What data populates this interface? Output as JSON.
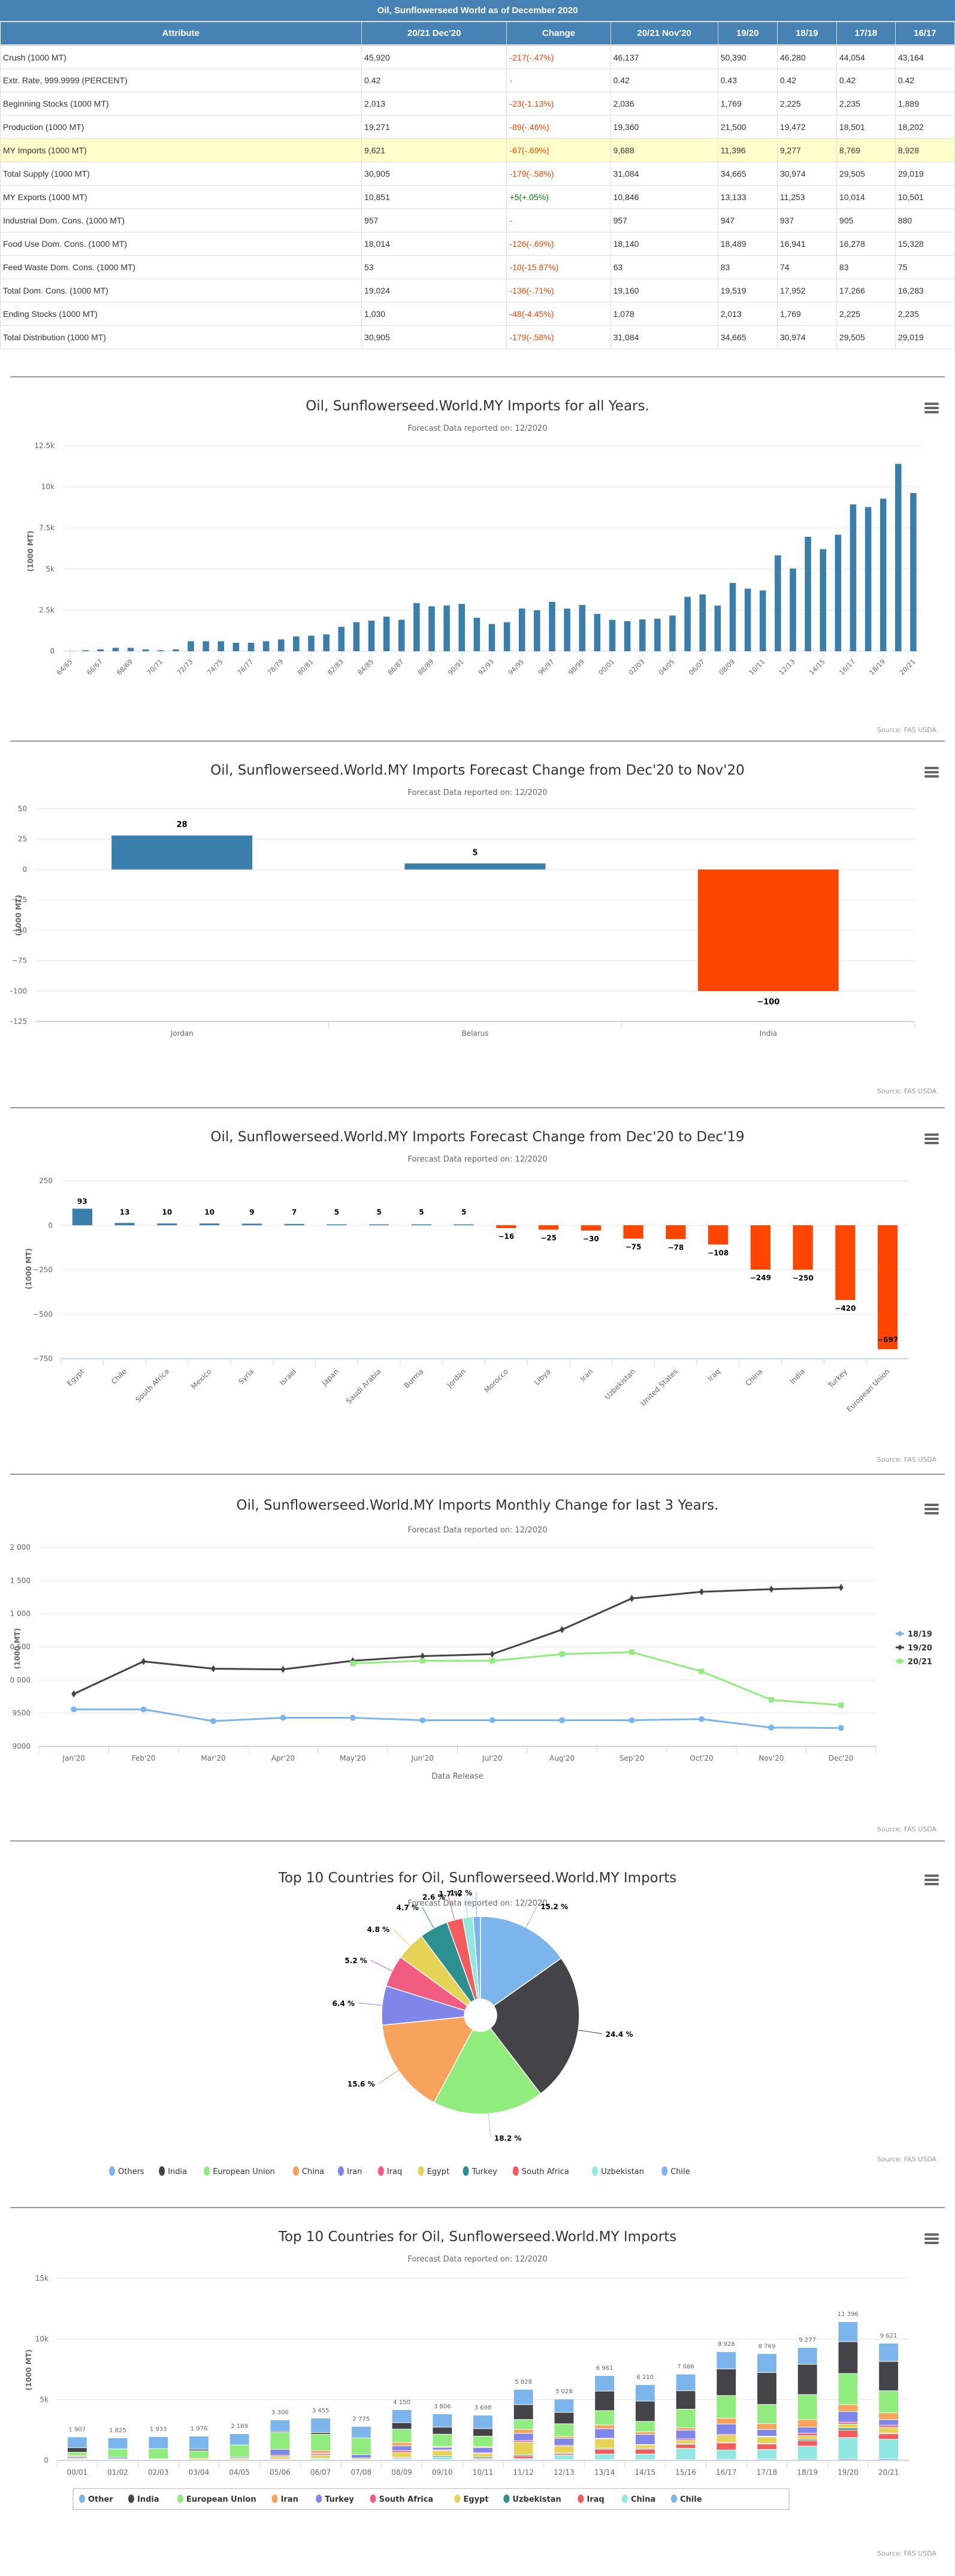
{
  "table": {
    "caption": "Oil, Sunflowerseed World as of December 2020",
    "headers": [
      "Attribute",
      "20/21 Dec'20",
      "Change",
      "20/21 Nov'20",
      "19/20",
      "18/19",
      "17/18",
      "16/17"
    ],
    "rows": [
      {
        "cells": [
          "Crush (1000 MT)",
          "45,920",
          "-217(-.47%)",
          "46,137",
          "50,390",
          "46,280",
          "44,054",
          "43,164"
        ],
        "change_sign": "neg",
        "highlight": false
      },
      {
        "cells": [
          "Extr. Rate, 999.9999 (PERCENT)",
          "0.42",
          "-",
          "0.42",
          "0.43",
          "0.42",
          "0.42",
          "0.42"
        ],
        "change_sign": "neg",
        "highlight": false
      },
      {
        "cells": [
          "Beginning Stocks (1000 MT)",
          "2,013",
          "-23(-1.13%)",
          "2,036",
          "1,769",
          "2,225",
          "2,235",
          "1,889"
        ],
        "change_sign": "neg",
        "highlight": false
      },
      {
        "cells": [
          "Production (1000 MT)",
          "19,271",
          "-89(-.46%)",
          "19,360",
          "21,500",
          "19,472",
          "18,501",
          "18,202"
        ],
        "change_sign": "neg",
        "highlight": false
      },
      {
        "cells": [
          "MY Imports (1000 MT)",
          "9,621",
          "-67(-.69%)",
          "9,688",
          "11,396",
          "9,277",
          "8,769",
          "8,928"
        ],
        "change_sign": "neg",
        "highlight": true
      },
      {
        "cells": [
          "Total Supply (1000 MT)",
          "30,905",
          "-179(-.58%)",
          "31,084",
          "34,665",
          "30,974",
          "29,505",
          "29,019"
        ],
        "change_sign": "neg",
        "highlight": false
      },
      {
        "cells": [
          "MY Exports (1000 MT)",
          "10,851",
          "+5(+.05%)",
          "10,846",
          "13,133",
          "11,253",
          "10,014",
          "10,501"
        ],
        "change_sign": "pos",
        "highlight": false
      },
      {
        "cells": [
          "Industrial Dom. Cons. (1000 MT)",
          "957",
          "-",
          "957",
          "947",
          "937",
          "905",
          "880"
        ],
        "change_sign": "neg",
        "highlight": false
      },
      {
        "cells": [
          "Food Use Dom. Cons. (1000 MT)",
          "18,014",
          "-126(-.69%)",
          "18,140",
          "18,489",
          "16,941",
          "16,278",
          "15,328"
        ],
        "change_sign": "neg",
        "highlight": false
      },
      {
        "cells": [
          "Feed Waste Dom. Cons. (1000 MT)",
          "53",
          "-10(-15.87%)",
          "63",
          "83",
          "74",
          "83",
          "75"
        ],
        "change_sign": "neg",
        "highlight": false
      },
      {
        "cells": [
          "Total Dom. Cons. (1000 MT)",
          "19,024",
          "-136(-.71%)",
          "19,160",
          "19,519",
          "17,952",
          "17,266",
          "16,283"
        ],
        "change_sign": "neg",
        "highlight": false
      },
      {
        "cells": [
          "Ending Stocks (1000 MT)",
          "1,030",
          "-48(-4.45%)",
          "1,078",
          "2,013",
          "1,769",
          "2,225",
          "2,235"
        ],
        "change_sign": "neg",
        "highlight": false
      },
      {
        "cells": [
          "Total Distribution (1000 MT)",
          "30,905",
          "-179(-.58%)",
          "31,084",
          "34,665",
          "30,974",
          "29,505",
          "29,019"
        ],
        "change_sign": "neg",
        "highlight": false
      }
    ]
  },
  "colors": {
    "blue": "#3a7fab",
    "orange": "#ff4500",
    "header": "#4682b4",
    "highlight": "#ffffcc"
  },
  "source_label": "Source: FAS USDA",
  "chart_data": [
    {
      "id": "all-years",
      "type": "bar",
      "title": "Oil, Sunflowerseed.World.MY Imports for all Years.",
      "subtitle": "Forecast Data reported on: 12/2020",
      "ylabel": "(1000 MT)",
      "ylim": [
        0,
        12500
      ],
      "yticks": [
        0,
        2500,
        5000,
        7500,
        10000,
        12500
      ],
      "ytick_labels": [
        "0",
        "2.5k",
        "5k",
        "7.5k",
        "10k",
        "12.5k"
      ],
      "categories": [
        "64/65",
        "65/66",
        "66/67",
        "67/68",
        "68/69",
        "69/70",
        "70/71",
        "71/72",
        "72/73",
        "73/74",
        "74/75",
        "75/76",
        "76/77",
        "77/78",
        "78/79",
        "79/80",
        "80/81",
        "81/82",
        "82/83",
        "83/84",
        "84/85",
        "85/86",
        "86/87",
        "87/88",
        "88/89",
        "89/90",
        "90/91",
        "91/92",
        "92/93",
        "93/94",
        "94/95",
        "95/96",
        "96/97",
        "97/98",
        "98/99",
        "99/00",
        "00/01",
        "01/02",
        "02/03",
        "03/04",
        "04/05",
        "05/06",
        "06/07",
        "07/08",
        "08/09",
        "09/10",
        "10/11",
        "11/12",
        "12/13",
        "13/14",
        "14/15",
        "15/16",
        "16/17",
        "17/18",
        "18/19",
        "19/20",
        "20/21"
      ],
      "values": [
        10,
        60,
        110,
        205,
        205,
        110,
        60,
        110,
        605,
        605,
        605,
        510,
        510,
        605,
        715,
        895,
        940,
        1025,
        1485,
        1765,
        1860,
        2100,
        1910,
        2925,
        2730,
        2780,
        2875,
        2030,
        1655,
        1765,
        2595,
        2490,
        3000,
        2595,
        2815,
        2270,
        1907,
        1825,
        1933,
        1976,
        2169,
        3306,
        3455,
        2775,
        4150,
        3806,
        3698,
        5828,
        5028,
        6961,
        6210,
        7086,
        8928,
        8769,
        9277,
        11396,
        9621
      ],
      "xtick_every": 2,
      "grid": true
    },
    {
      "id": "change-nov",
      "type": "bar",
      "title": "Oil, Sunflowerseed.World.MY Imports Forecast Change from Dec'20 to Nov'20",
      "subtitle": "Forecast Data reported on: 12/2020",
      "ylabel": "(1000 MT)",
      "ylim": [
        -125,
        50
      ],
      "yticks": [
        -125,
        -100,
        -75,
        -50,
        -25,
        0,
        25,
        50
      ],
      "categories": [
        "Jordan",
        "Belarus",
        "India"
      ],
      "values": [
        28,
        5,
        -100
      ],
      "grid": true
    },
    {
      "id": "change-dec19",
      "type": "bar",
      "title": "Oil, Sunflowerseed.World.MY Imports Forecast Change from Dec'20 to Dec'19",
      "subtitle": "Forecast Data reported on: 12/2020",
      "ylabel": "(1000 MT)",
      "ylim": [
        -750,
        250
      ],
      "yticks": [
        -750,
        -500,
        -250,
        0,
        250
      ],
      "categories": [
        "Egypt",
        "Chile",
        "South Africa",
        "Mexico",
        "Syria",
        "Israel",
        "Japan",
        "Saudi Arabia",
        "Burma",
        "Jordan",
        "Morocco",
        "Libya",
        "Iran",
        "Uzbekistan",
        "United States",
        "Iraq",
        "China",
        "India",
        "Turkey",
        "European Union"
      ],
      "values": [
        93,
        13,
        10,
        10,
        9,
        7,
        5,
        5,
        5,
        5,
        -16,
        -25,
        -30,
        -75,
        -78,
        -108,
        -249,
        -250,
        -420,
        -697
      ],
      "grid": true
    },
    {
      "id": "monthly",
      "type": "line",
      "title": "Oil, Sunflowerseed.World.MY Imports Monthly Change for last 3 Years.",
      "subtitle": "Forecast Data reported on: 12/2020",
      "xlabel": "Data Release",
      "ylabel": "(1000 MT)",
      "ylim": [
        9000,
        12000
      ],
      "yticks": [
        9000,
        9500,
        10000,
        10500,
        11000,
        11500,
        12000
      ],
      "ytick_labels": [
        "9000",
        "9500",
        "10 000",
        "10 500",
        "11 000",
        "11 500",
        "12 000"
      ],
      "x": [
        "Jan'20",
        "Feb'20",
        "Mar'20",
        "Apr'20",
        "May'20",
        "Jun'20",
        "Jul'20",
        "Aug'20",
        "Sep'20",
        "Oct'20",
        "Nov'20",
        "Dec'20"
      ],
      "series": [
        {
          "name": "18/19",
          "color": "#7cb5ec",
          "marker": "circle",
          "values": [
            9557,
            9557,
            9380,
            9430,
            9430,
            9393,
            9393,
            9393,
            9393,
            9410,
            9282,
            9277
          ]
        },
        {
          "name": "19/20",
          "color": "#434348",
          "marker": "diamond",
          "values": [
            9790,
            10280,
            10170,
            10160,
            10290,
            10360,
            10390,
            10760,
            11230,
            11330,
            11370,
            11396
          ]
        },
        {
          "name": "20/21",
          "color": "#90ed7d",
          "marker": "square",
          "values": [
            null,
            null,
            null,
            null,
            10250,
            10290,
            10290,
            10390,
            10420,
            10130,
            9700,
            9621
          ]
        }
      ],
      "legend": "right",
      "grid": true
    },
    {
      "id": "top10-pie",
      "type": "pie",
      "title": "Top 10 Countries for Oil, Sunflowerseed.World.MY Imports",
      "subtitle": "Forecast Data reported on: 12/2020",
      "slices": [
        {
          "label": "Others",
          "value": 15.2,
          "color": "#7cb5ec"
        },
        {
          "label": "India",
          "value": 24.4,
          "color": "#434348"
        },
        {
          "label": "European Union",
          "value": 18.2,
          "color": "#90ed7d"
        },
        {
          "label": "China",
          "value": 15.6,
          "color": "#f7a35c"
        },
        {
          "label": "Iran",
          "value": 6.4,
          "color": "#8085e9"
        },
        {
          "label": "Iraq",
          "value": 5.2,
          "color": "#f15c80"
        },
        {
          "label": "Egypt",
          "value": 4.8,
          "color": "#e4d354"
        },
        {
          "label": "Turkey",
          "value": 4.7,
          "color": "#2b908f"
        },
        {
          "label": "South Africa",
          "value": 2.6,
          "color": "#f45b5b"
        },
        {
          "label": "Uzbekistan",
          "value": 1.7,
          "color": "#91e8e1"
        },
        {
          "label": "Chile",
          "value": 1.2,
          "color": "#7cb5ec"
        }
      ],
      "legend": "bottom"
    },
    {
      "id": "top10-stacked",
      "type": "bar",
      "stacked": true,
      "title": "Top 10 Countries for Oil, Sunflowerseed.World.MY Imports",
      "subtitle": "Forecast Data reported on: 12/2020",
      "ylabel": "(1000 MT)",
      "ylim": [
        0,
        15000
      ],
      "yticks": [
        0,
        5000,
        10000,
        15000
      ],
      "ytick_labels": [
        "0",
        "5k",
        "10k",
        "15k"
      ],
      "categories": [
        "00/01",
        "01/02",
        "02/03",
        "03/04",
        "04/05",
        "05/06",
        "06/07",
        "07/08",
        "08/09",
        "09/10",
        "10/11",
        "11/12",
        "12/13",
        "13/14",
        "14/15",
        "15/16",
        "16/17",
        "17/18",
        "18/19",
        "19/20",
        "20/21"
      ],
      "totals": [
        1907,
        1825,
        1933,
        1976,
        2169,
        3306,
        3455,
        2775,
        4150,
        3806,
        3698,
        5828,
        5028,
        6961,
        6210,
        7086,
        8928,
        8769,
        9277,
        11396,
        9621
      ],
      "total_labels": [
        "1 907",
        "1 825",
        "1 933",
        "1 976",
        "2 169",
        "3 306",
        "3 455",
        "2 775",
        "4 150",
        "3 806",
        "3 698",
        "5 828",
        "5 028",
        "6 961",
        "6 210",
        "7 086",
        "8 928",
        "8 769",
        "9 277",
        "11 396",
        "9 621"
      ],
      "series": [
        {
          "name": "Chile",
          "color": "#7cb5ec",
          "values": [
            20,
            20,
            20,
            20,
            20,
            20,
            20,
            20,
            30,
            30,
            30,
            30,
            30,
            30,
            30,
            40,
            60,
            70,
            80,
            90,
            100
          ]
        },
        {
          "name": "China",
          "color": "#91e8e1",
          "values": [
            20,
            10,
            10,
            10,
            10,
            20,
            80,
            20,
            100,
            190,
            30,
            80,
            320,
            400,
            400,
            800,
            690,
            700,
            950,
            1600,
            1450
          ]
        },
        {
          "name": "Iraq",
          "color": "#f45b5b",
          "values": [
            20,
            10,
            0,
            0,
            0,
            60,
            20,
            0,
            60,
            0,
            60,
            170,
            100,
            350,
            350,
            290,
            520,
            400,
            400,
            560,
            400
          ]
        },
        {
          "name": "Uzbekistan",
          "color": "#2b908f",
          "values": [
            0,
            0,
            0,
            0,
            0,
            0,
            0,
            0,
            0,
            80,
            80,
            80,
            60,
            60,
            60,
            60,
            40,
            60,
            100,
            160,
            60
          ]
        },
        {
          "name": "Egypt",
          "color": "#e4d354",
          "values": [
            80,
            60,
            50,
            90,
            90,
            150,
            210,
            100,
            340,
            370,
            230,
            880,
            460,
            680,
            240,
            230,
            520,
            470,
            270,
            300,
            420
          ]
        },
        {
          "name": "South Africa",
          "color": "#f15c80",
          "values": [
            0,
            0,
            0,
            0,
            0,
            80,
            100,
            0,
            120,
            60,
            60,
            110,
            70,
            40,
            30,
            100,
            80,
            40,
            170,
            140,
            160
          ]
        },
        {
          "name": "Turkey",
          "color": "#8085e9",
          "values": [
            90,
            100,
            0,
            0,
            70,
            420,
            60,
            230,
            330,
            170,
            340,
            500,
            490,
            680,
            720,
            630,
            770,
            490,
            450,
            800,
            410
          ]
        },
        {
          "name": "Iran",
          "color": "#f7a35c",
          "values": [
            60,
            0,
            0,
            0,
            0,
            0,
            180,
            0,
            230,
            60,
            60,
            280,
            130,
            270,
            190,
            180,
            430,
            440,
            560,
            520,
            510
          ]
        },
        {
          "name": "European Union",
          "color": "#90ed7d",
          "values": [
            220,
            600,
            650,
            500,
            780,
            1170,
            1130,
            1150,
            920,
            870,
            700,
            680,
            890,
            1030,
            740,
            1330,
            1680,
            1390,
            1840,
            2340,
            1640
          ]
        },
        {
          "name": "India",
          "color": "#434348",
          "values": [
            300,
            0,
            0,
            100,
            0,
            70,
            120,
            0,
            450,
            500,
            500,
            1030,
            800,
            1400,
            1450,
            1330,
            1980,
            2340,
            2230,
            2400,
            2180
          ]
        },
        {
          "name": "Other",
          "color": "#7cb5ec",
          "values": [
            697,
            790,
            770,
            870,
            720,
            800,
            1000,
            800,
            890,
            940,
            890,
            1060,
            940,
            1110,
            1170,
            1200,
            1280,
            1380,
            1240,
            1500,
            1350
          ]
        }
      ],
      "legend_order": [
        "Other",
        "India",
        "European Union",
        "Iran",
        "Turkey",
        "South Africa",
        "Egypt",
        "Uzbekistan",
        "Iraq",
        "China",
        "Chile"
      ],
      "legend": "bottom",
      "grid": true
    }
  ]
}
